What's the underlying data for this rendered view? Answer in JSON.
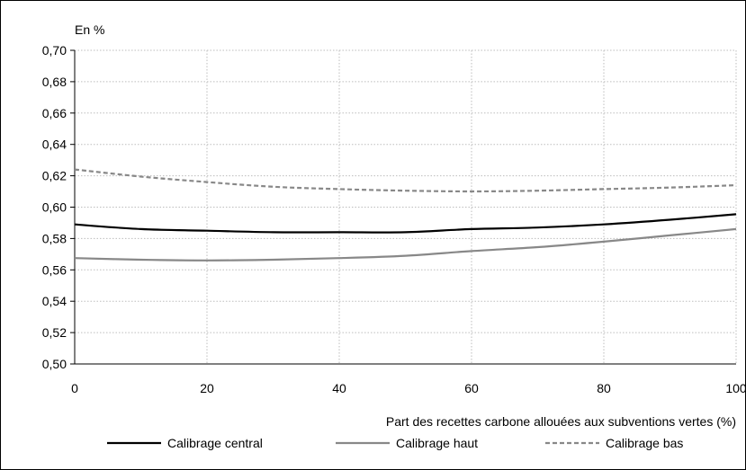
{
  "chart_data": {
    "type": "line",
    "ylabel": "En %",
    "xlabel": "Part des recettes carbone allouées aux subventions vertes (%)",
    "xlim": [
      0,
      100
    ],
    "ylim": [
      0.5,
      0.7
    ],
    "x_ticks": [
      "0",
      "20",
      "40",
      "60",
      "80",
      "100"
    ],
    "y_ticks": [
      "0,50",
      "0,52",
      "0,54",
      "0,56",
      "0,58",
      "0,60",
      "0,62",
      "0,64",
      "0,66",
      "0,68",
      "0,70"
    ],
    "grid": "dotted",
    "legend_position": "bottom",
    "x": [
      0,
      10,
      20,
      30,
      40,
      50,
      60,
      70,
      80,
      90,
      100
    ],
    "series": [
      {
        "name": "Calibrage central",
        "style": "solid",
        "color": "#000000",
        "values": [
          0.589,
          0.586,
          0.585,
          0.584,
          0.584,
          0.584,
          0.586,
          0.587,
          0.589,
          0.592,
          0.5955
        ]
      },
      {
        "name": "Calibrage haut",
        "style": "solid",
        "color": "#888888",
        "values": [
          0.5675,
          0.5665,
          0.566,
          0.5665,
          0.5675,
          0.569,
          0.572,
          0.5745,
          0.578,
          0.582,
          0.586
        ]
      },
      {
        "name": "Calibrage bas",
        "style": "dashed",
        "color": "#888888",
        "values": [
          0.624,
          0.6195,
          0.616,
          0.613,
          0.6115,
          0.6105,
          0.61,
          0.6105,
          0.6115,
          0.6125,
          0.614
        ]
      }
    ]
  }
}
